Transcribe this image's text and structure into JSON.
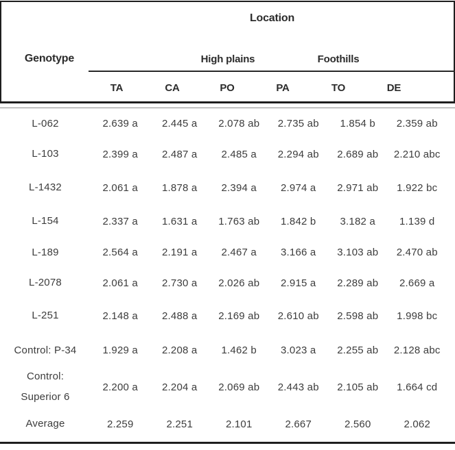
{
  "table": {
    "title": "Location",
    "genotype_header": "Genotype",
    "groups": {
      "high_plains": "High plains",
      "foothills": "Foothills"
    },
    "columns": [
      "TA",
      "CA",
      "PO",
      "PA",
      "TO",
      "DE"
    ],
    "rows": [
      {
        "genotype": "L-062",
        "values": [
          "2.639 a",
          "2.445 a",
          "2.078 ab",
          "2.735 ab",
          "1.854 b",
          "2.359 ab"
        ]
      },
      {
        "genotype": "L-103",
        "values": [
          "2.399 a",
          "2.487 a",
          "2.485 a",
          "2.294 ab",
          "2.689 ab",
          "2.210 abc"
        ]
      },
      {
        "genotype": "L-1432",
        "values": [
          "2.061 a",
          "1.878 a",
          "2.394 a",
          "2.974 a",
          "2.971 ab",
          "1.922 bc"
        ]
      },
      {
        "genotype": "L-154",
        "values": [
          "2.337 a",
          "1.631 a",
          "1.763 ab",
          "1.842 b",
          "3.182 a",
          "1.139 d"
        ]
      },
      {
        "genotype": "L-189",
        "values": [
          "2.564 a",
          "2.191 a",
          "2.467 a",
          "3.166 a",
          "3.103 ab",
          "2.470 ab"
        ]
      },
      {
        "genotype": "L-2078",
        "values": [
          "2.061 a",
          "2.730 a",
          "2.026 ab",
          "2.915 a",
          "2.289 ab",
          "2.669 a"
        ]
      },
      {
        "genotype": "L-251",
        "values": [
          "2.148 a",
          "2.488 a",
          "2.169 ab",
          "2.610 ab",
          "2.598 ab",
          "1.998 bc"
        ]
      },
      {
        "genotype": "Control: P-34",
        "values": [
          "1.929 a",
          "2.208 a",
          "1.462 b",
          "3.023 a",
          "2.255 ab",
          "2.128 abc"
        ]
      },
      {
        "genotype": "Control:\nSuperior 6",
        "values": [
          "2.200 a",
          "2.204 a",
          "2.069 ab",
          "2.443 ab",
          "2.105 ab",
          "1.664 cd"
        ]
      },
      {
        "genotype": "Average",
        "values": [
          "2.259",
          "2.251",
          "2.101",
          "2.667",
          "2.560",
          "2.062"
        ]
      }
    ],
    "colors": {
      "text": "#3c3c3c",
      "header_text": "#2b2b2b",
      "rule_dark": "#1e1e1e",
      "rule_thin_gray": "#8e8e8e"
    }
  }
}
